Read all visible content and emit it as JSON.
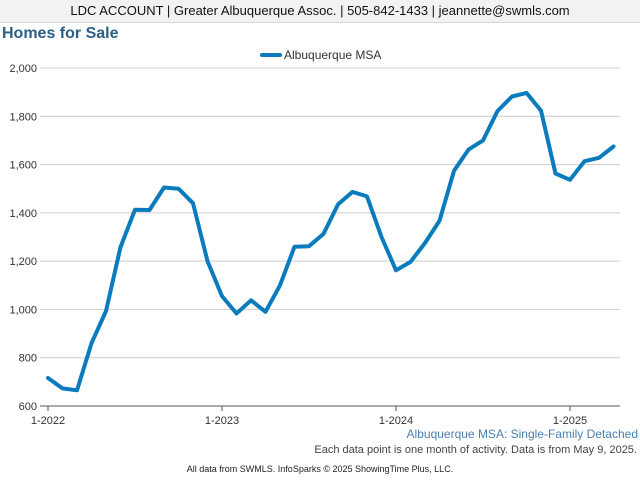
{
  "header": {
    "account_line": "LDC ACCOUNT | Greater Albuquerque Assoc. | 505-842-1433 | jeannette@swmls.com"
  },
  "page_title": "Homes for Sale",
  "footer": {
    "region_label": "Albuquerque MSA: Single-Family Detached",
    "note": "Each data point is one month of activity. Data is from May 9, 2025.",
    "source": "All data from SWMLS. InfoSparks © 2025 ShowingTime Plus, LLC."
  },
  "colors": {
    "series": "#0a7bbd",
    "grid": "#cccccc",
    "axis": "#555555",
    "region": "#4a7fad"
  },
  "chart_data": {
    "type": "line",
    "title": "",
    "xlabel": "",
    "ylabel": "",
    "ylim": [
      600,
      2000
    ],
    "yticks": [
      600,
      800,
      1000,
      1200,
      1400,
      1600,
      1800,
      2000
    ],
    "ytick_labels": [
      "600",
      "800",
      "1,000",
      "1,200",
      "1,400",
      "1,600",
      "1,800",
      "2,000"
    ],
    "xtick_labels": [
      "1-2022",
      "1-2023",
      "1-2024",
      "1-2025"
    ],
    "xtick_index": [
      0,
      12,
      24,
      36
    ],
    "grid": true,
    "legend_position": "top-center",
    "x": [
      "1-2022",
      "2-2022",
      "3-2022",
      "4-2022",
      "5-2022",
      "6-2022",
      "7-2022",
      "8-2022",
      "9-2022",
      "10-2022",
      "11-2022",
      "12-2022",
      "1-2023",
      "2-2023",
      "3-2023",
      "4-2023",
      "5-2023",
      "6-2023",
      "7-2023",
      "8-2023",
      "9-2023",
      "10-2023",
      "11-2023",
      "12-2023",
      "1-2024",
      "2-2024",
      "3-2024",
      "4-2024",
      "5-2024",
      "6-2024",
      "7-2024",
      "8-2024",
      "9-2024",
      "10-2024",
      "11-2024",
      "12-2024",
      "1-2025",
      "2-2025",
      "3-2025",
      "4-2025"
    ],
    "series": [
      {
        "name": "Albuquerque MSA",
        "values": [
          716,
          673,
          665,
          860,
          993,
          1258,
          1413,
          1412,
          1505,
          1500,
          1440,
          1200,
          1055,
          983,
          1038,
          990,
          1100,
          1260,
          1262,
          1313,
          1435,
          1487,
          1468,
          1300,
          1162,
          1197,
          1275,
          1367,
          1574,
          1662,
          1700,
          1822,
          1882,
          1897,
          1823,
          1563,
          1537,
          1614,
          1628,
          1675
        ]
      }
    ]
  }
}
